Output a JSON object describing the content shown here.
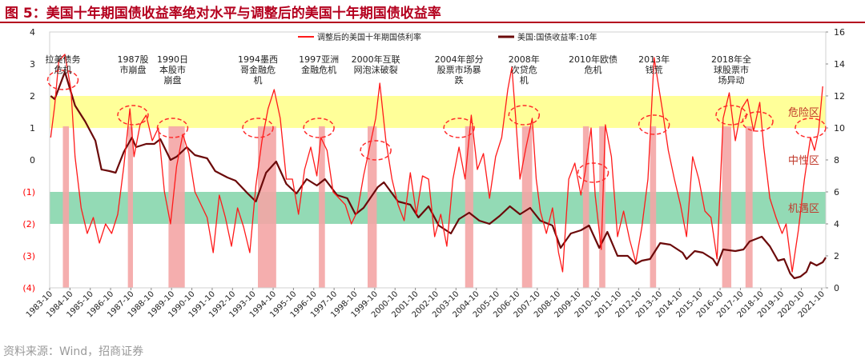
{
  "figure_title": "图 5：美国十年期国债收益率绝对水平与调整后的美国十年期国债收益率",
  "source_note": "资料来源：Wind，招商证券",
  "colors": {
    "title": "#b4001e",
    "adjusted_line": "#ff1a1a",
    "yield_line": "#6b0a0a",
    "danger_band": "#ffff99",
    "opportunity_band": "#80d4a8",
    "crisis_bar": "#f4a5a5",
    "circle": "#ff2a2a",
    "zone_label": "#c0392b",
    "neg_tick": "#ff0000"
  },
  "chart_data": {
    "type": "line",
    "title": "美国十年期国债收益率绝对水平与调整后的美国十年期国债收益率",
    "x_labels": [
      "1983-10",
      "1984-10",
      "1985-10",
      "1986-10",
      "1987-10",
      "1988-10",
      "1989-10",
      "1990-10",
      "1991-10",
      "1992-10",
      "1993-10",
      "1994-10",
      "1995-10",
      "1996-10",
      "1997-10",
      "1998-10",
      "1999-10",
      "2000-10",
      "2001-10",
      "2002-10",
      "2003-10",
      "2004-10",
      "2005-10",
      "2006-10",
      "2007-10",
      "2008-10",
      "2009-10",
      "2010-10",
      "2011-10",
      "2012-10",
      "2013-10",
      "2014-10",
      "2015-10",
      "2016-10",
      "2017-10",
      "2018-10",
      "2019-10",
      "2020-10",
      "2021-10"
    ],
    "x_range": [
      1983.75,
      2021.95
    ],
    "left_axis": {
      "min": -4,
      "max": 4,
      "ticks": [
        4,
        3,
        2,
        1,
        0,
        -1,
        -2,
        -3,
        -4
      ],
      "tick_labels": [
        "4",
        "3",
        "2",
        "1",
        "0",
        "(1)",
        "(2)",
        "(3)",
        "(4)"
      ]
    },
    "right_axis": {
      "min": 0,
      "max": 16,
      "ticks": [
        16,
        14,
        12,
        10,
        8,
        6,
        4,
        2,
        0
      ],
      "tick_labels": [
        "16",
        "14",
        "12",
        "10",
        "8",
        "6",
        "4",
        "2",
        "0"
      ]
    },
    "bands": [
      {
        "name": "危险区",
        "from": 1,
        "to": 2,
        "axis": "left"
      },
      {
        "name": "中性区",
        "from": -1,
        "to": 1,
        "axis": "left"
      },
      {
        "name": "机遇区",
        "from": -2,
        "to": -1,
        "axis": "left"
      }
    ],
    "crisis_periods": [
      [
        1984.4,
        1984.7
      ],
      [
        1987.6,
        1987.85
      ],
      [
        1989.6,
        1990.4
      ],
      [
        1994.0,
        1994.9
      ],
      [
        1997.0,
        1997.3
      ],
      [
        1999.4,
        1999.85
      ],
      [
        2004.2,
        2004.6
      ],
      [
        2007.0,
        2007.5
      ],
      [
        2010.0,
        2010.3
      ],
      [
        2010.8,
        2011.1
      ],
      [
        2013.3,
        2013.6
      ],
      [
        2016.85,
        2017.3
      ],
      [
        2018.0,
        2018.35
      ]
    ],
    "events": [
      {
        "label": "拉美债务危机",
        "x": 1984.4,
        "circle_y": 2.5,
        "line_label": [
          "拉美债务",
          "危机"
        ]
      },
      {
        "label": "1987股市崩盘",
        "x": 1987.85,
        "circle_y": 1.4,
        "line_label": [
          "1987股",
          "市崩盘"
        ]
      },
      {
        "label": "1990日本股市崩盘",
        "x": 1989.8,
        "circle_y": 1.0,
        "line_label": [
          "1990日",
          "本股市",
          "崩盘"
        ]
      },
      {
        "label": "1994墨西哥金融危机",
        "x": 1994.0,
        "circle_y": 1.0,
        "line_label": [
          "1994墨西",
          "哥金融危",
          "机"
        ]
      },
      {
        "label": "1997亚洲金融危机",
        "x": 1997.0,
        "circle_y": 1.0,
        "line_label": [
          "1997亚洲",
          "金融危机"
        ]
      },
      {
        "label": "2000年互联网泡沫破裂",
        "x": 1999.8,
        "circle_y": 0.3,
        "line_label": [
          "2000年互联",
          "网泡沫破裂"
        ]
      },
      {
        "label": "2004年部分股票市场暴跌",
        "x": 2003.9,
        "circle_y": 1.0,
        "line_label": [
          "2004年部分",
          "股票市场暴",
          "跌"
        ]
      },
      {
        "label": "2008年次贷危机",
        "x": 2007.1,
        "circle_y": 1.4,
        "line_label": [
          "2008年",
          "次贷危",
          "机"
        ]
      },
      {
        "label": "2010年欧债危机",
        "x": 2010.5,
        "circle_y": -0.4,
        "line_label": [
          "2010年欧债",
          "危机"
        ]
      },
      {
        "label": "2013年钱荒",
        "x": 2013.5,
        "circle_y": 1.1,
        "line_label": [
          "2013年",
          "钱荒"
        ]
      },
      {
        "label": "2018年全球股票市场异动",
        "x": 2017.3,
        "circle_y": 1.4,
        "line_label": [
          "2018年全",
          "球股票市",
          "场异动"
        ]
      }
    ],
    "extra_circles": [
      {
        "x": 2018.6,
        "y": 1.2
      },
      {
        "x": 2021.2,
        "y": 1.0
      }
    ],
    "series": [
      {
        "name": "调整后的美国十年期国债利率",
        "axis": "left",
        "points": [
          [
            1983.8,
            0.7
          ],
          [
            1984.0,
            1.7
          ],
          [
            1984.2,
            3.1
          ],
          [
            1984.5,
            3.3
          ],
          [
            1984.8,
            2.2
          ],
          [
            1985.0,
            0.1
          ],
          [
            1985.3,
            -1.5
          ],
          [
            1985.6,
            -2.3
          ],
          [
            1985.9,
            -1.8
          ],
          [
            1986.2,
            -2.6
          ],
          [
            1986.5,
            -2.0
          ],
          [
            1986.8,
            -2.3
          ],
          [
            1987.1,
            -1.7
          ],
          [
            1987.4,
            -0.2
          ],
          [
            1987.7,
            1.6
          ],
          [
            1987.9,
            0.1
          ],
          [
            1988.2,
            1.1
          ],
          [
            1988.5,
            1.4
          ],
          [
            1988.8,
            0.6
          ],
          [
            1989.1,
            1.0
          ],
          [
            1989.4,
            -1.0
          ],
          [
            1989.7,
            -2.0
          ],
          [
            1990.0,
            -0.2
          ],
          [
            1990.3,
            0.8
          ],
          [
            1990.6,
            0.2
          ],
          [
            1990.9,
            -1.0
          ],
          [
            1991.2,
            -1.4
          ],
          [
            1991.5,
            -1.8
          ],
          [
            1991.8,
            -2.9
          ],
          [
            1992.1,
            -1.1
          ],
          [
            1992.4,
            -1.8
          ],
          [
            1992.7,
            -2.7
          ],
          [
            1993.0,
            -1.5
          ],
          [
            1993.3,
            -2.1
          ],
          [
            1993.6,
            -2.9
          ],
          [
            1993.9,
            -0.8
          ],
          [
            1994.2,
            0.6
          ],
          [
            1994.5,
            1.6
          ],
          [
            1994.8,
            2.2
          ],
          [
            1995.1,
            1.3
          ],
          [
            1995.4,
            -0.6
          ],
          [
            1995.7,
            -0.6
          ],
          [
            1996.0,
            -1.7
          ],
          [
            1996.3,
            -0.3
          ],
          [
            1996.6,
            0.4
          ],
          [
            1996.9,
            -0.5
          ],
          [
            1997.1,
            0.7
          ],
          [
            1997.4,
            0.3
          ],
          [
            1997.7,
            -1.0
          ],
          [
            1998.0,
            -1.2
          ],
          [
            1998.3,
            -1.4
          ],
          [
            1998.6,
            -2.0
          ],
          [
            1998.9,
            -1.6
          ],
          [
            1999.2,
            -0.5
          ],
          [
            1999.5,
            0.4
          ],
          [
            1999.8,
            1.3
          ],
          [
            2000.0,
            2.4
          ],
          [
            2000.3,
            0.6
          ],
          [
            2000.6,
            -0.6
          ],
          [
            2000.9,
            -1.4
          ],
          [
            2001.2,
            -1.9
          ],
          [
            2001.5,
            -0.4
          ],
          [
            2001.8,
            -1.7
          ],
          [
            2002.1,
            -0.5
          ],
          [
            2002.4,
            -0.6
          ],
          [
            2002.7,
            -2.4
          ],
          [
            2003.0,
            -1.7
          ],
          [
            2003.3,
            -2.7
          ],
          [
            2003.6,
            -0.6
          ],
          [
            2003.9,
            0.4
          ],
          [
            2004.2,
            -0.6
          ],
          [
            2004.5,
            1.4
          ],
          [
            2004.8,
            -0.3
          ],
          [
            2005.1,
            0.2
          ],
          [
            2005.4,
            -1.2
          ],
          [
            2005.7,
            0.1
          ],
          [
            2006.0,
            0.7
          ],
          [
            2006.3,
            2.2
          ],
          [
            2006.5,
            2.9
          ],
          [
            2006.7,
            1.2
          ],
          [
            2006.9,
            -0.6
          ],
          [
            2007.2,
            0.4
          ],
          [
            2007.5,
            1.3
          ],
          [
            2007.7,
            -0.6
          ],
          [
            2007.9,
            -1.6
          ],
          [
            2008.2,
            -2.3
          ],
          [
            2008.5,
            -1.5
          ],
          [
            2008.8,
            -2.9
          ],
          [
            2009.0,
            -3.5
          ],
          [
            2009.3,
            -0.6
          ],
          [
            2009.6,
            -0.1
          ],
          [
            2009.9,
            -1.1
          ],
          [
            2010.1,
            -0.4
          ],
          [
            2010.4,
            1.0
          ],
          [
            2010.6,
            -1.1
          ],
          [
            2010.9,
            -2.8
          ],
          [
            2011.1,
            1.1
          ],
          [
            2011.4,
            0.1
          ],
          [
            2011.7,
            -2.4
          ],
          [
            2012.0,
            -1.6
          ],
          [
            2012.3,
            -2.5
          ],
          [
            2012.6,
            -3.2
          ],
          [
            2012.9,
            -2.1
          ],
          [
            2013.2,
            -0.6
          ],
          [
            2013.5,
            3.2
          ],
          [
            2013.7,
            2.4
          ],
          [
            2013.9,
            1.6
          ],
          [
            2014.2,
            0.3
          ],
          [
            2014.5,
            -0.6
          ],
          [
            2014.8,
            -1.4
          ],
          [
            2015.1,
            -2.4
          ],
          [
            2015.4,
            0.1
          ],
          [
            2015.7,
            -0.6
          ],
          [
            2016.0,
            -1.6
          ],
          [
            2016.3,
            -1.8
          ],
          [
            2016.6,
            -3.1
          ],
          [
            2016.9,
            1.3
          ],
          [
            2017.2,
            2.1
          ],
          [
            2017.5,
            0.6
          ],
          [
            2017.8,
            1.6
          ],
          [
            2018.1,
            1.9
          ],
          [
            2018.4,
            0.9
          ],
          [
            2018.7,
            1.8
          ],
          [
            2018.9,
            0.4
          ],
          [
            2019.2,
            -1.2
          ],
          [
            2019.5,
            -1.8
          ],
          [
            2019.8,
            -2.3
          ],
          [
            2020.0,
            -2.0
          ],
          [
            2020.3,
            -3.5
          ],
          [
            2020.6,
            -2.2
          ],
          [
            2020.9,
            -0.6
          ],
          [
            2021.2,
            0.7
          ],
          [
            2021.4,
            0.3
          ],
          [
            2021.6,
            0.9
          ],
          [
            2021.8,
            2.3
          ]
        ]
      },
      {
        "name": "美国:国债收益率:10年",
        "axis": "right",
        "points": [
          [
            1983.8,
            12.0
          ],
          [
            1984.0,
            11.8
          ],
          [
            1984.5,
            13.5
          ],
          [
            1985.0,
            11.4
          ],
          [
            1985.5,
            10.4
          ],
          [
            1986.0,
            9.2
          ],
          [
            1986.3,
            7.4
          ],
          [
            1986.7,
            7.3
          ],
          [
            1987.0,
            7.2
          ],
          [
            1987.4,
            8.5
          ],
          [
            1987.8,
            9.4
          ],
          [
            1988.0,
            8.8
          ],
          [
            1988.5,
            9.0
          ],
          [
            1988.9,
            9.0
          ],
          [
            1989.2,
            9.3
          ],
          [
            1989.7,
            8.0
          ],
          [
            1990.0,
            8.2
          ],
          [
            1990.5,
            8.8
          ],
          [
            1990.9,
            8.3
          ],
          [
            1991.5,
            8.1
          ],
          [
            1991.9,
            7.3
          ],
          [
            1992.5,
            6.9
          ],
          [
            1992.9,
            6.7
          ],
          [
            1993.5,
            5.9
          ],
          [
            1993.9,
            5.4
          ],
          [
            1994.4,
            7.2
          ],
          [
            1994.9,
            7.9
          ],
          [
            1995.4,
            6.5
          ],
          [
            1995.9,
            5.9
          ],
          [
            1996.4,
            6.8
          ],
          [
            1996.9,
            6.4
          ],
          [
            1997.3,
            6.8
          ],
          [
            1997.9,
            5.8
          ],
          [
            1998.4,
            5.6
          ],
          [
            1998.8,
            4.6
          ],
          [
            1999.2,
            5.0
          ],
          [
            1999.9,
            6.3
          ],
          [
            2000.2,
            6.6
          ],
          [
            2000.9,
            5.4
          ],
          [
            2001.5,
            5.2
          ],
          [
            2001.9,
            4.4
          ],
          [
            2002.4,
            5.1
          ],
          [
            2002.9,
            3.9
          ],
          [
            2003.5,
            3.4
          ],
          [
            2003.9,
            4.3
          ],
          [
            2004.4,
            4.7
          ],
          [
            2004.9,
            4.2
          ],
          [
            2005.4,
            4.0
          ],
          [
            2005.9,
            4.5
          ],
          [
            2006.4,
            5.1
          ],
          [
            2006.9,
            4.6
          ],
          [
            2007.4,
            5.0
          ],
          [
            2007.9,
            4.2
          ],
          [
            2008.5,
            3.9
          ],
          [
            2008.9,
            2.5
          ],
          [
            2009.4,
            3.4
          ],
          [
            2009.9,
            3.6
          ],
          [
            2010.3,
            3.9
          ],
          [
            2010.8,
            2.5
          ],
          [
            2011.2,
            3.5
          ],
          [
            2011.7,
            2.0
          ],
          [
            2012.2,
            2.0
          ],
          [
            2012.6,
            1.5
          ],
          [
            2012.9,
            1.7
          ],
          [
            2013.3,
            1.8
          ],
          [
            2013.8,
            2.8
          ],
          [
            2014.3,
            2.7
          ],
          [
            2014.9,
            2.2
          ],
          [
            2015.1,
            1.8
          ],
          [
            2015.5,
            2.3
          ],
          [
            2015.9,
            2.2
          ],
          [
            2016.4,
            1.8
          ],
          [
            2016.6,
            1.4
          ],
          [
            2016.9,
            2.4
          ],
          [
            2017.5,
            2.3
          ],
          [
            2017.9,
            2.4
          ],
          [
            2018.2,
            2.9
          ],
          [
            2018.8,
            3.2
          ],
          [
            2019.2,
            2.6
          ],
          [
            2019.6,
            1.7
          ],
          [
            2019.9,
            1.8
          ],
          [
            2020.2,
            0.9
          ],
          [
            2020.4,
            0.6
          ],
          [
            2020.7,
            0.7
          ],
          [
            2021.0,
            1.0
          ],
          [
            2021.2,
            1.6
          ],
          [
            2021.5,
            1.4
          ],
          [
            2021.8,
            1.6
          ],
          [
            2021.95,
            1.9
          ]
        ]
      }
    ]
  }
}
